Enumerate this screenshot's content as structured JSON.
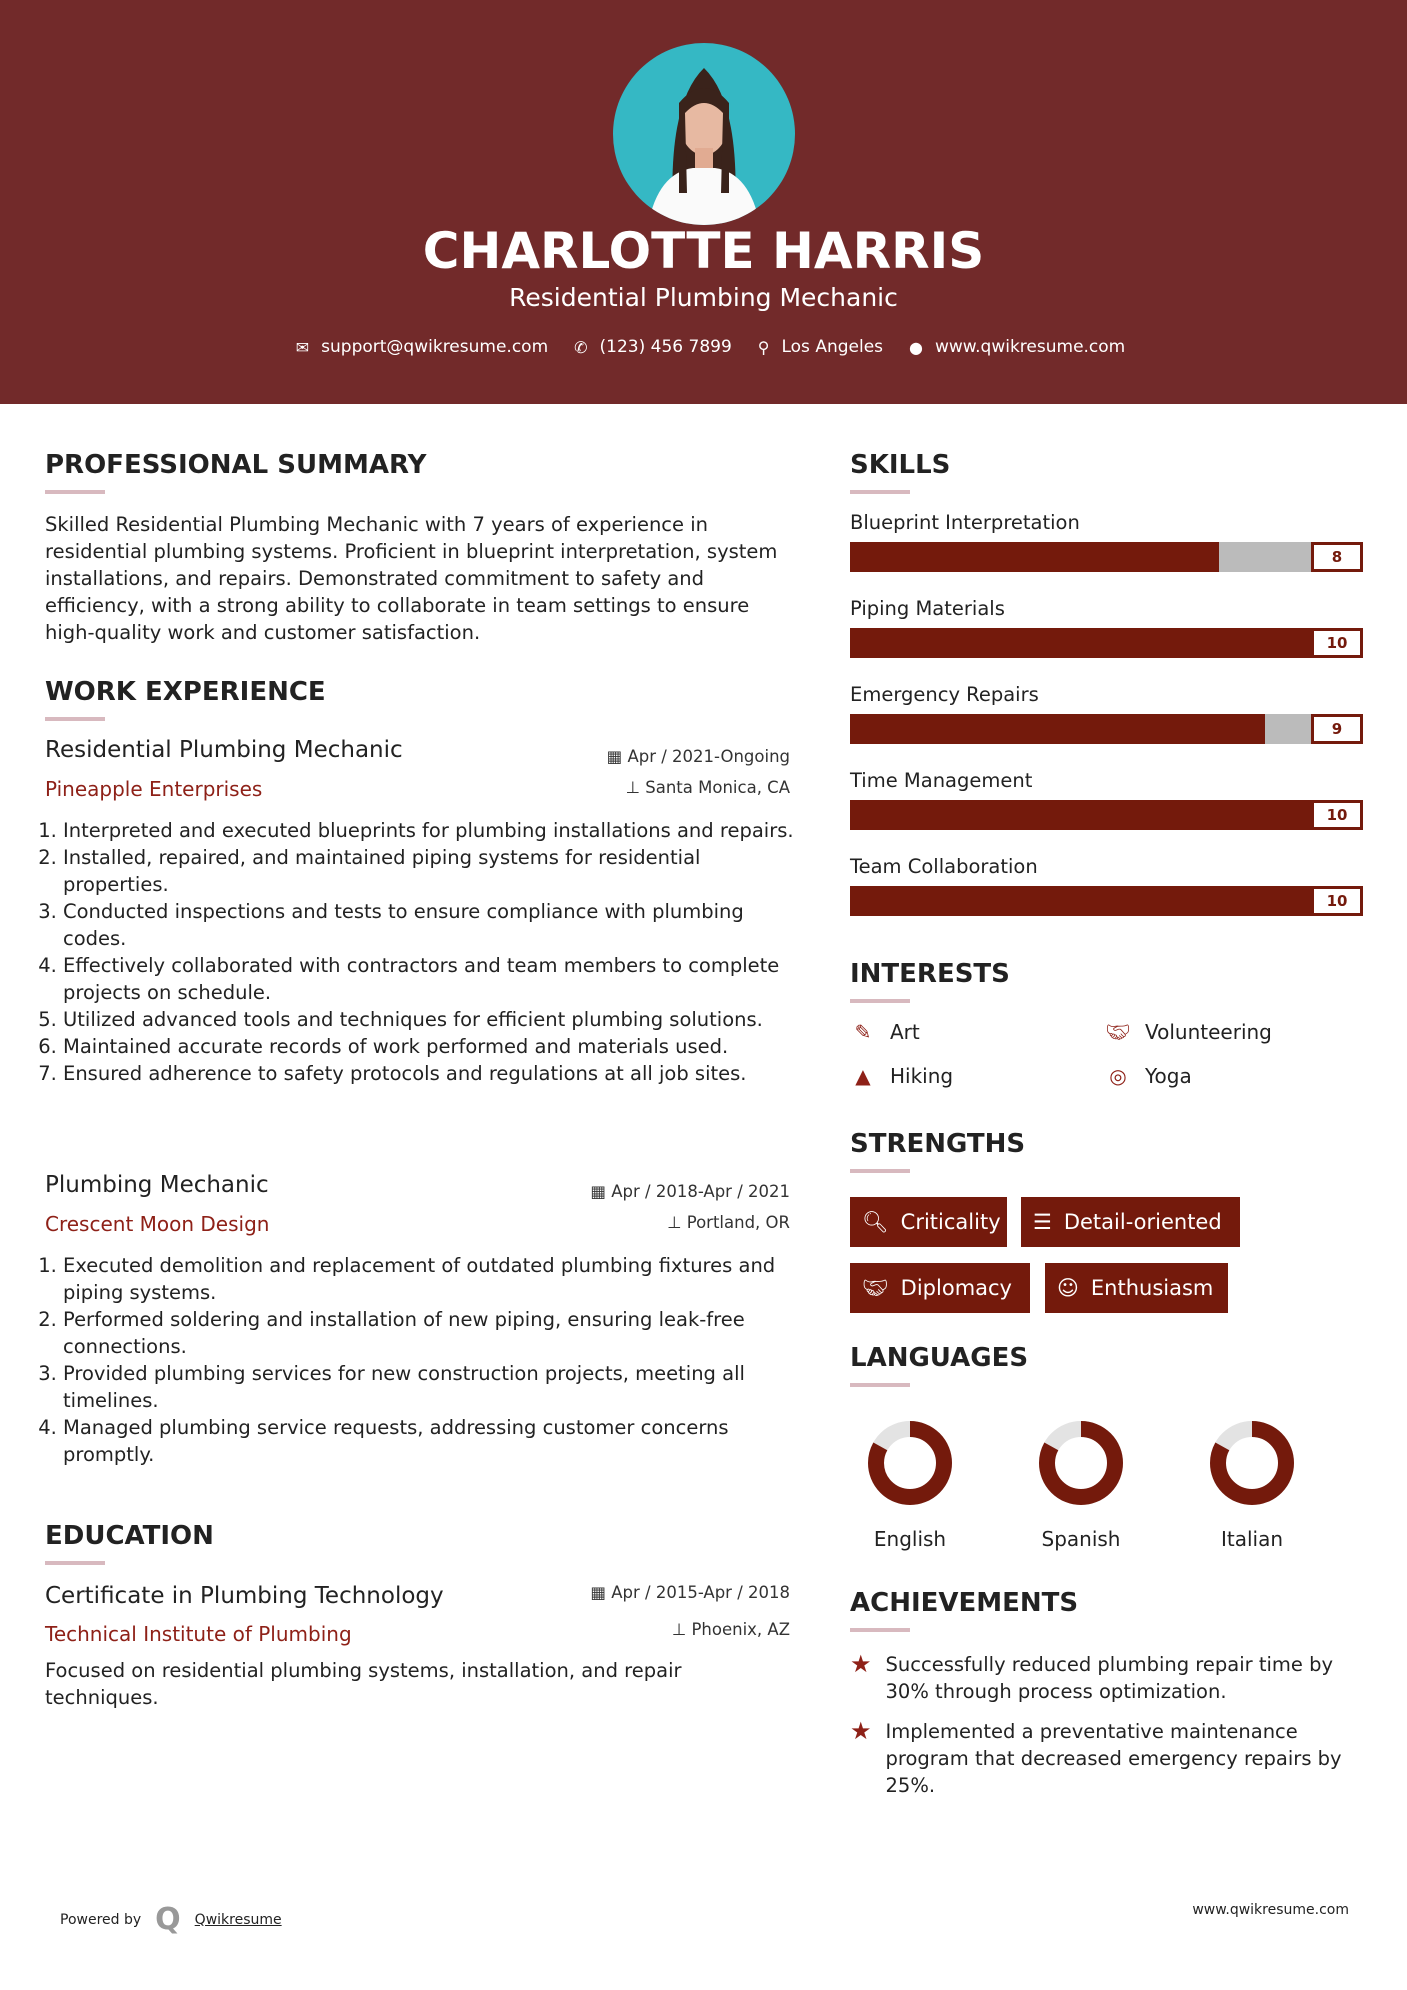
{
  "header": {
    "name": "CHARLOTTE HARRIS",
    "title": "Residential Plumbing Mechanic",
    "email": "support@qwikresume.com",
    "phone": "(123) 456 7899",
    "location": "Los Angeles",
    "website": "www.qwikresume.com",
    "colors": {
      "header_bg": "#722a2a",
      "accent": "#741a0c",
      "photo_bg": "#35b8c4"
    }
  },
  "summary": {
    "heading": "PROFESSIONAL SUMMARY",
    "text": "Skilled Residential Plumbing Mechanic with 7 years of experience in residential plumbing systems. Proficient in blueprint interpretation, system installations, and repairs. Demonstrated commitment to safety and efficiency, with a strong ability to collaborate in team settings to ensure high-quality work and customer satisfaction."
  },
  "experience": {
    "heading": "WORK EXPERIENCE",
    "jobs": [
      {
        "title": "Residential Plumbing Mechanic",
        "company": "Pineapple Enterprises",
        "dates": "Apr / 2021-Ongoing",
        "location": "Santa Monica, CA",
        "items": [
          "Interpreted and executed blueprints for plumbing installations and repairs.",
          "Installed, repaired, and maintained piping systems for residential properties.",
          "Conducted inspections and tests to ensure compliance with plumbing codes.",
          "Effectively collaborated with contractors and team members to complete projects on schedule.",
          "Utilized advanced tools and techniques for efficient plumbing solutions.",
          "Maintained accurate records of work performed and materials used.",
          "Ensured adherence to safety protocols and regulations at all job sites."
        ]
      },
      {
        "title": "Plumbing Mechanic",
        "company": "Crescent Moon Design",
        "dates": "Apr / 2018-Apr / 2021",
        "location": "Portland, OR",
        "items": [
          "Executed demolition and replacement of outdated plumbing fixtures and piping systems.",
          "Performed soldering and installation of new piping, ensuring leak-free connections.",
          "Provided plumbing services for new construction projects, meeting all timelines.",
          "Managed plumbing service requests, addressing customer concerns promptly."
        ]
      }
    ]
  },
  "education": {
    "heading": "EDUCATION",
    "degree": "Certificate in Plumbing Technology",
    "school": "Technical Institute of Plumbing",
    "dates": "Apr / 2015-Apr / 2018",
    "location": "Phoenix, AZ",
    "description": "Focused on residential plumbing systems, installation, and repair techniques."
  },
  "skills": {
    "heading": "SKILLS",
    "items": [
      {
        "name": "Blueprint Interpretation",
        "level": 8
      },
      {
        "name": "Piping Materials",
        "level": 10
      },
      {
        "name": "Emergency Repairs",
        "level": 9
      },
      {
        "name": "Time Management",
        "level": 10
      },
      {
        "name": "Team Collaboration",
        "level": 10
      }
    ]
  },
  "interests": {
    "heading": "INTERESTS",
    "items": [
      {
        "label": "Art",
        "icon": "paintbrush-icon"
      },
      {
        "label": "Volunteering",
        "icon": "handshake-icon"
      },
      {
        "label": "Hiking",
        "icon": "tree-icon"
      },
      {
        "label": "Yoga",
        "icon": "lifebuoy-icon"
      }
    ]
  },
  "strengths": {
    "heading": "STRENGTHS",
    "items": [
      {
        "label": "Criticality",
        "icon": "search-icon"
      },
      {
        "label": "Detail-oriented",
        "icon": "list-icon"
      },
      {
        "label": "Diplomacy",
        "icon": "handshake-icon"
      },
      {
        "label": "Enthusiasm",
        "icon": "smile-icon"
      }
    ]
  },
  "languages": {
    "heading": "LANGUAGES",
    "items": [
      {
        "name": "English",
        "level_percent": 83
      },
      {
        "name": "Spanish",
        "level_percent": 83
      },
      {
        "name": "Italian",
        "level_percent": 83
      }
    ]
  },
  "achievements": {
    "heading": "ACHIEVEMENTS",
    "items": [
      "Successfully reduced plumbing repair time by 30% through process optimization.",
      "Implemented a preventative maintenance program that decreased emergency repairs by 25%."
    ]
  },
  "footer": {
    "powered_by": "Powered by",
    "brand": "Qwikresume",
    "website": "www.qwikresume.com"
  }
}
